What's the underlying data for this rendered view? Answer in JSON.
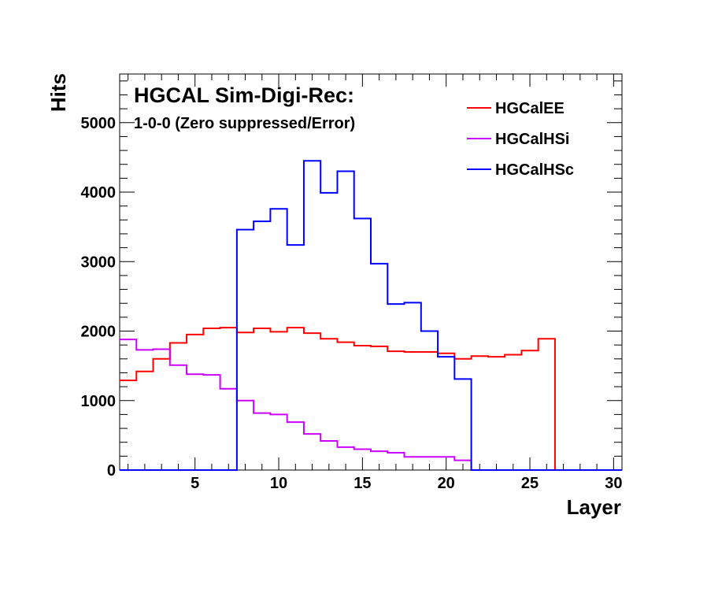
{
  "chart_data": {
    "type": "line",
    "title": "HGCAL Sim-Digi-Rec:",
    "subtitle": "1-0-0 (Zero suppressed/Error)",
    "xlabel": "Layer",
    "ylabel": "Hits",
    "xlim": [
      0.5,
      30.5
    ],
    "ylim": [
      0,
      5700
    ],
    "xticks": [
      5,
      10,
      15,
      20,
      25,
      30
    ],
    "yticks": [
      0,
      1000,
      2000,
      3000,
      4000,
      5000
    ],
    "x": [
      1,
      2,
      3,
      4,
      5,
      6,
      7,
      8,
      9,
      10,
      11,
      12,
      13,
      14,
      15,
      16,
      17,
      18,
      19,
      20,
      21,
      22,
      23,
      24,
      25,
      26,
      27,
      28,
      29,
      30
    ],
    "legend_position": "top-right",
    "series": [
      {
        "name": "HGCalEE",
        "color": "#ff0000",
        "values": [
          1290,
          1420,
          1600,
          1830,
          1950,
          2040,
          2050,
          1980,
          2040,
          1990,
          2050,
          1970,
          1890,
          1840,
          1790,
          1780,
          1710,
          1700,
          1700,
          1680,
          1600,
          1640,
          1630,
          1660,
          1720,
          1890,
          0,
          0,
          0,
          0
        ]
      },
      {
        "name": "HGCalHSi",
        "color": "#cc00ff",
        "values": [
          1880,
          1730,
          1740,
          1510,
          1380,
          1370,
          1170,
          1000,
          820,
          800,
          690,
          520,
          420,
          330,
          300,
          270,
          250,
          190,
          190,
          190,
          140,
          0,
          0,
          0,
          0,
          0,
          0,
          0,
          0,
          0
        ]
      },
      {
        "name": "HGCalHSc",
        "color": "#0000ff",
        "values": [
          0,
          0,
          0,
          0,
          0,
          0,
          0,
          3460,
          3580,
          3760,
          3240,
          4450,
          3990,
          4300,
          3620,
          2970,
          2390,
          2410,
          2000,
          1630,
          1310,
          0,
          0,
          0,
          0,
          0,
          0,
          0,
          0,
          0
        ]
      }
    ]
  }
}
